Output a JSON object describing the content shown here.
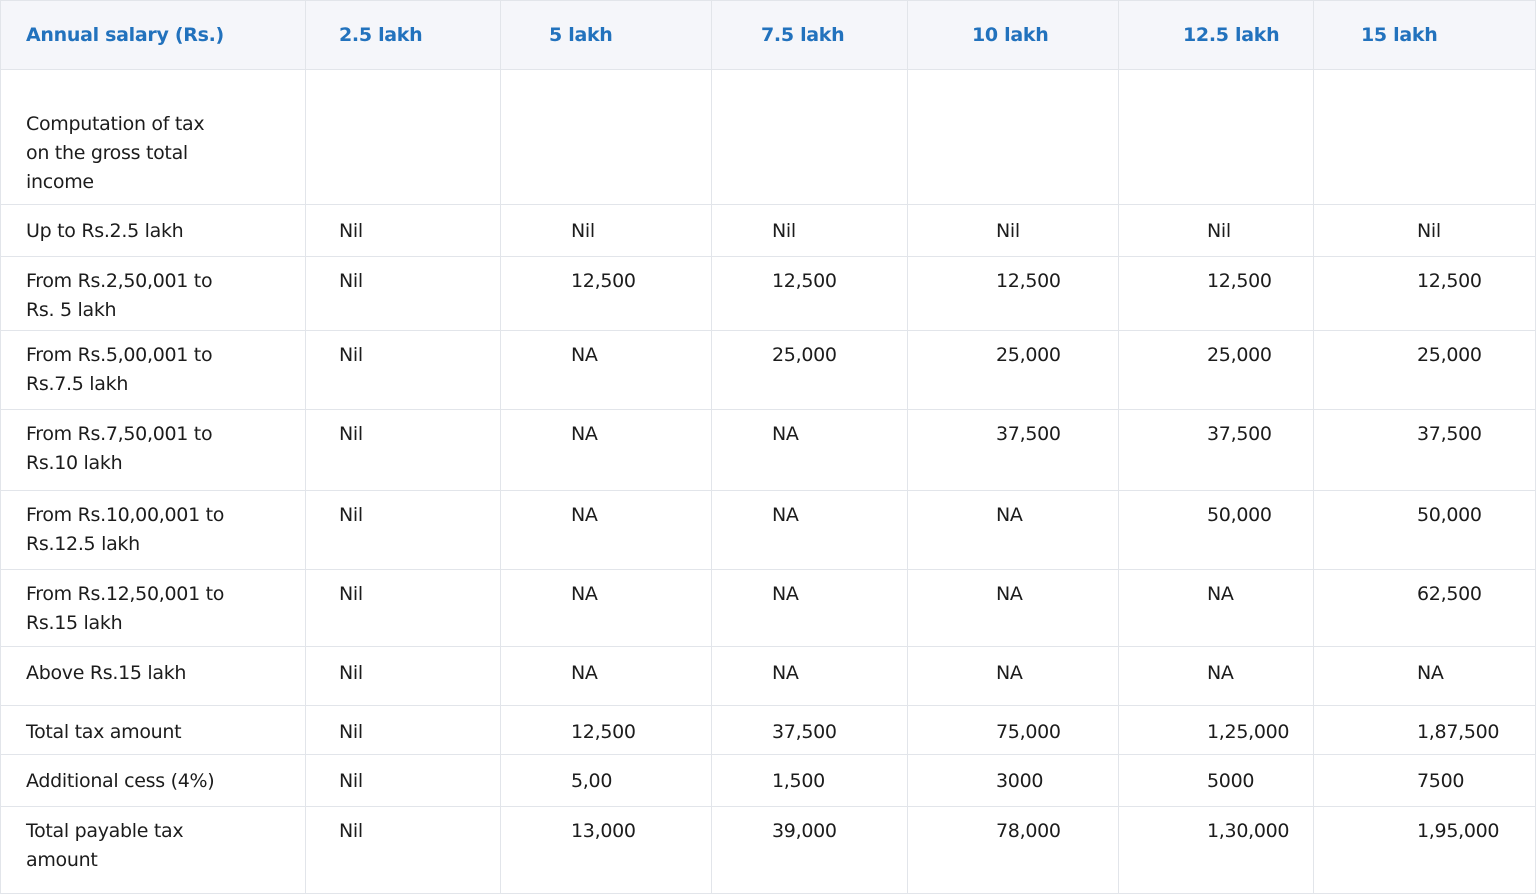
{
  "table": {
    "header": [
      "Annual salary (Rs.)",
      "2.5 lakh",
      "5 lakh",
      "7.5 lakh",
      "10 lakh",
      "12.5 lakh",
      "15 lakh"
    ],
    "rows": [
      {
        "label": "Computation of tax\non the gross total\nincome"
      },
      {
        "label": "Up to Rs.2.5 lakh",
        "values": [
          "Nil",
          "Nil",
          "Nil",
          "Nil",
          "Nil",
          "Nil"
        ]
      },
      {
        "label": "From Rs.2,50,001 to\nRs. 5 lakh",
        "values": [
          "Nil",
          "12,500",
          "12,500",
          "12,500",
          "12,500",
          "12,500"
        ]
      },
      {
        "label": "From Rs.5,00,001 to\nRs.7.5 lakh",
        "values": [
          "Nil",
          "NA",
          "25,000",
          "25,000",
          "25,000",
          "25,000"
        ]
      },
      {
        "label": "From Rs.7,50,001 to\nRs.10 lakh",
        "values": [
          "Nil",
          "NA",
          "NA",
          "37,500",
          "37,500",
          "37,500"
        ]
      },
      {
        "label": "From Rs.10,00,001 to\nRs.12.5 lakh",
        "values": [
          "Nil",
          "NA",
          "NA",
          "NA",
          "50,000",
          "50,000"
        ]
      },
      {
        "label": "From Rs.12,50,001 to\nRs.15 lakh",
        "values": [
          "Nil",
          "NA",
          "NA",
          "NA",
          "NA",
          "62,500"
        ]
      },
      {
        "label": "Above Rs.15 lakh",
        "values": [
          "Nil",
          "NA",
          "NA",
          "NA",
          "NA",
          "NA"
        ]
      },
      {
        "label": "Total tax amount",
        "values": [
          "Nil",
          "12,500",
          "37,500",
          "75,000",
          "1,25,000",
          "1,87,500"
        ]
      },
      {
        "label": "Additional cess (4%)",
        "values": [
          "Nil",
          "5,00",
          "1,500",
          "3000",
          "5000",
          "7500"
        ]
      },
      {
        "label": "Total payable tax\namount",
        "values": [
          "Nil",
          "13,000",
          "39,000",
          "78,000",
          "1,30,000",
          "1,95,000"
        ]
      }
    ]
  }
}
